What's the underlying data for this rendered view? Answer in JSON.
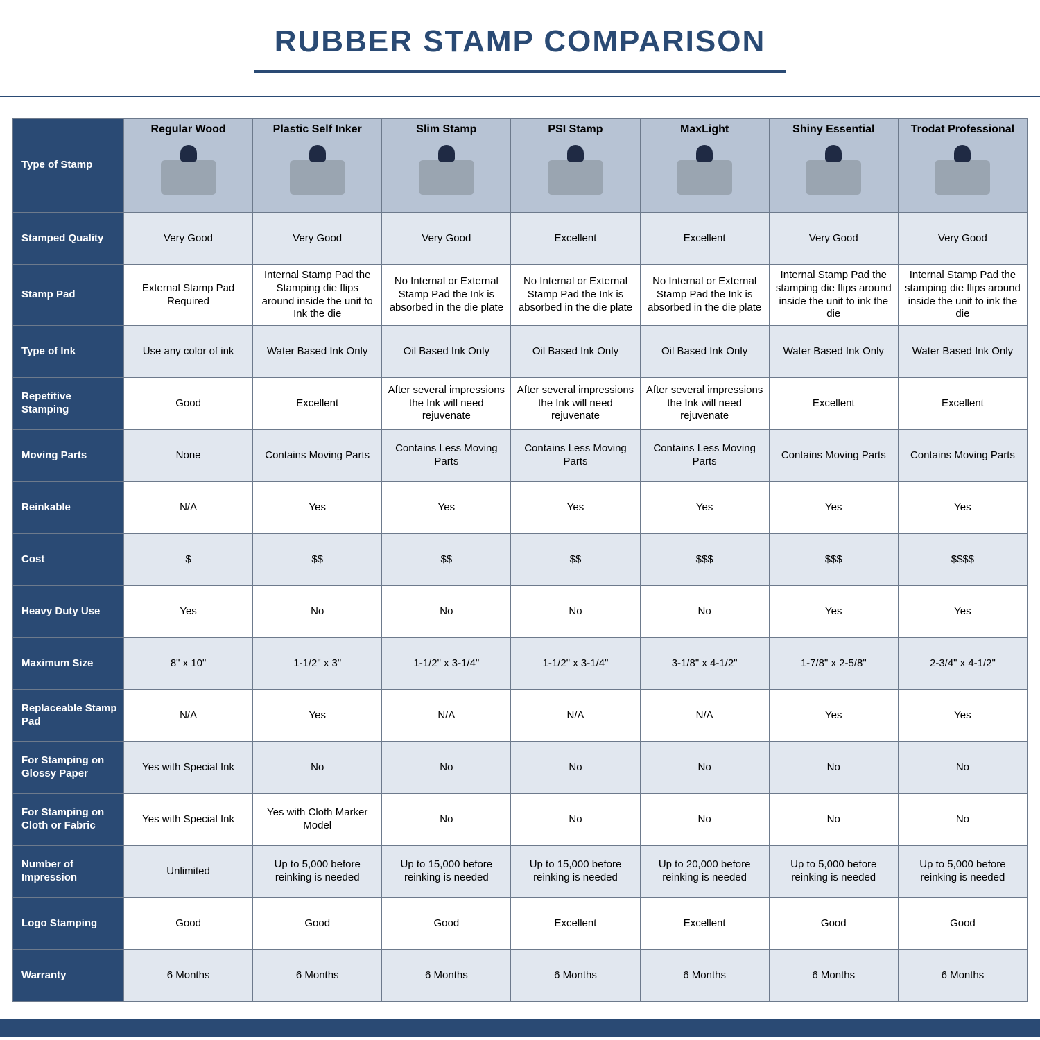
{
  "colors": {
    "navy": "#2a4a74",
    "headerRowBg": "#b7c3d4",
    "altRowBg": "#e1e7ef",
    "whiteRowBg": "#ffffff",
    "border": "#6d7a8c",
    "titleColor": "#2a4a74",
    "titleUnderline": "#2a4a74",
    "ruleColor": "#2a4a74",
    "bottomBar": "#2a4a74"
  },
  "layout": {
    "colWidths": [
      "160px",
      "auto",
      "auto",
      "auto",
      "auto",
      "auto",
      "auto",
      "auto"
    ],
    "title_fontsize": 44,
    "headerImgRowHeight": 90,
    "bodyRowHeight": 62
  },
  "title": "RUBBER STAMP COMPARISON",
  "columns": [
    "Type of Stamp",
    "Regular Wood",
    "Plastic Self Inker",
    "Slim Stamp",
    "PSI Stamp",
    "MaxLight",
    "Shiny Essential",
    "Trodat Professional"
  ],
  "rows": [
    {
      "label": "Stamped Quality",
      "cells": [
        "Very Good",
        "Very Good",
        "Very Good",
        "Excellent",
        "Excellent",
        "Very Good",
        "Very Good"
      ]
    },
    {
      "label": "Stamp Pad",
      "cells": [
        "External Stamp Pad Required",
        "Internal Stamp Pad the Stamping die flips around inside the unit to Ink the die",
        "No Internal or External Stamp Pad the Ink is absorbed in the die plate",
        "No Internal or External Stamp Pad the Ink is absorbed in the die plate",
        "No Internal or External Stamp Pad the Ink is absorbed in the die plate",
        "Internal Stamp Pad the stamping die flips around inside the unit to ink the die",
        "Internal Stamp Pad the stamping die flips around inside the unit to ink the die"
      ]
    },
    {
      "label": "Type of Ink",
      "cells": [
        "Use any color of ink",
        "Water Based Ink Only",
        "Oil Based Ink Only",
        "Oil Based Ink Only",
        "Oil Based Ink Only",
        "Water Based Ink Only",
        "Water Based Ink Only"
      ]
    },
    {
      "label": "Repetitive Stamping",
      "cells": [
        "Good",
        "Excellent",
        "After several impressions the Ink will need rejuvenate",
        "After several impressions the Ink will need rejuvenate",
        "After several impressions the Ink will need rejuvenate",
        "Excellent",
        "Excellent"
      ]
    },
    {
      "label": "Moving Parts",
      "cells": [
        "None",
        "Contains Moving Parts",
        "Contains Less Moving Parts",
        "Contains Less Moving Parts",
        "Contains Less Moving Parts",
        "Contains Moving Parts",
        "Contains Moving Parts"
      ]
    },
    {
      "label": "Reinkable",
      "cells": [
        "N/A",
        "Yes",
        "Yes",
        "Yes",
        "Yes",
        "Yes",
        "Yes"
      ]
    },
    {
      "label": "Cost",
      "cells": [
        "$",
        "$$",
        "$$",
        "$$",
        "$$$",
        "$$$",
        "$$$$"
      ]
    },
    {
      "label": "Heavy Duty Use",
      "cells": [
        "Yes",
        "No",
        "No",
        "No",
        "No",
        "Yes",
        "Yes"
      ]
    },
    {
      "label": "Maximum Size",
      "cells": [
        "8\" x 10\"",
        "1-1/2\" x 3\"",
        "1-1/2\" x 3-1/4\"",
        "1-1/2\" x 3-1/4\"",
        "3-1/8\" x 4-1/2\"",
        "1-7/8\" x 2-5/8\"",
        "2-3/4\" x 4-1/2\""
      ]
    },
    {
      "label": "Replaceable Stamp Pad",
      "cells": [
        "N/A",
        "Yes",
        "N/A",
        "N/A",
        "N/A",
        "Yes",
        "Yes"
      ]
    },
    {
      "label": "For Stamping on Glossy Paper",
      "cells": [
        "Yes with Special Ink",
        "No",
        "No",
        "No",
        "No",
        "No",
        "No"
      ]
    },
    {
      "label": "For Stamping on Cloth or Fabric",
      "cells": [
        "Yes with Special Ink",
        "Yes with Cloth Marker Model",
        "No",
        "No",
        "No",
        "No",
        "No"
      ]
    },
    {
      "label": "Number of Impression",
      "cells": [
        "Unlimited",
        "Up to 5,000 before reinking is needed",
        "Up to 15,000 before reinking is needed",
        "Up to 15,000 before reinking is needed",
        "Up to 20,000 before reinking is needed",
        "Up to 5,000 before reinking is needed",
        "Up to 5,000 before reinking is needed"
      ]
    },
    {
      "label": "Logo Stamping",
      "cells": [
        "Good",
        "Good",
        "Good",
        "Excellent",
        "Excellent",
        "Good",
        "Good"
      ]
    },
    {
      "label": "Warranty",
      "cells": [
        "6 Months",
        "6 Months",
        "6 Months",
        "6 Months",
        "6 Months",
        "6 Months",
        "6 Months"
      ]
    }
  ]
}
